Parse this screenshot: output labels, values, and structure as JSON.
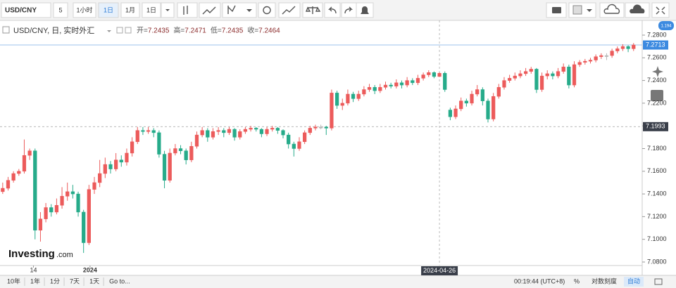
{
  "toolbar": {
    "symbol": "USD/CNY",
    "buttons": [
      "5",
      "1小时",
      "1日",
      "1月",
      "1日"
    ],
    "active": 2
  },
  "legend": {
    "title": "USD/CNY, 日, 实时外汇",
    "ohlc": [
      {
        "label": "开=",
        "value": 7.2435
      },
      {
        "label": "高=",
        "value": 7.2471
      },
      {
        "label": "低=",
        "value": 7.2435
      },
      {
        "label": "收=",
        "value": 7.2464
      }
    ]
  },
  "badge": "1.194",
  "logo": {
    "main": "Investing",
    "suffix": ".com"
  },
  "bottom_bar": {
    "ranges": [
      "10年",
      "1年",
      "1分",
      "7天",
      "1天"
    ],
    "goto": "Go to...",
    "clock": "00:19:44 (UTC+8)",
    "percent": "%",
    "log": "对数刻度",
    "auto": "自动"
  },
  "chart_data": {
    "type": "candlestick",
    "up_color": "#ec5b5b",
    "down_color": "#26ab8a",
    "flat_color": "#b8b8b8",
    "ylim": [
      7.0769,
      7.293
    ],
    "xlim": [
      -0.5,
      118.6
    ],
    "yticks": [
      {
        "value": 7.28,
        "label": "7.2800"
      },
      {
        "value": 7.26,
        "label": "7.2600"
      },
      {
        "value": 7.24,
        "label": "7.2400"
      },
      {
        "value": 7.22,
        "label": "7.2200"
      },
      {
        "value": 7.2,
        "label": "7.2000"
      },
      {
        "value": 7.18,
        "label": "7.1800"
      },
      {
        "value": 7.16,
        "label": "7.1600"
      },
      {
        "value": 7.14,
        "label": "7.1400"
      },
      {
        "value": 7.12,
        "label": "7.1200"
      },
      {
        "value": 7.1,
        "label": "7.1000"
      },
      {
        "value": 7.08,
        "label": "7.0800"
      }
    ],
    "xticks": [
      {
        "value": 5.7,
        "label": "14"
      },
      {
        "value": 16.2,
        "label": "2024"
      }
    ],
    "last_price": 7.2713,
    "crosshair": {
      "index": 81,
      "price": 7.1993,
      "label": "2024-04-26"
    },
    "candles": [
      [
        7.142,
        7.15,
        7.14,
        7.145
      ],
      [
        7.145,
        7.155,
        7.143,
        7.152
      ],
      [
        7.152,
        7.16,
        7.15,
        7.158
      ],
      [
        7.158,
        7.162,
        7.156,
        7.16
      ],
      [
        7.16,
        7.188,
        7.158,
        7.174
      ],
      [
        7.174,
        7.18,
        7.17,
        7.178
      ],
      [
        7.178,
        7.18,
        7.1,
        7.108
      ],
      [
        7.108,
        7.124,
        7.098,
        7.118
      ],
      [
        7.118,
        7.132,
        7.115,
        7.128
      ],
      [
        7.128,
        7.131,
        7.12,
        7.124
      ],
      [
        7.124,
        7.136,
        7.122,
        7.13
      ],
      [
        7.13,
        7.146,
        7.127,
        7.138
      ],
      [
        7.138,
        7.15,
        7.134,
        7.142
      ],
      [
        7.142,
        7.148,
        7.136,
        7.14
      ],
      [
        7.14,
        7.142,
        7.12,
        7.124
      ],
      [
        7.124,
        7.126,
        7.088,
        7.097
      ],
      [
        7.097,
        7.148,
        7.095,
        7.144
      ],
      [
        7.144,
        7.155,
        7.14,
        7.15
      ],
      [
        7.15,
        7.17,
        7.146,
        7.158
      ],
      [
        7.158,
        7.172,
        7.154,
        7.166
      ],
      [
        7.166,
        7.169,
        7.158,
        7.162
      ],
      [
        7.162,
        7.176,
        7.16,
        7.17
      ],
      [
        7.17,
        7.174,
        7.164,
        7.168
      ],
      [
        7.168,
        7.18,
        7.165,
        7.176
      ],
      [
        7.176,
        7.19,
        7.173,
        7.186
      ],
      [
        7.186,
        7.199,
        7.184,
        7.196
      ],
      [
        7.196,
        7.199,
        7.192,
        7.195
      ],
      [
        7.195,
        7.199,
        7.193,
        7.196
      ],
      [
        7.196,
        7.198,
        7.19,
        7.194
      ],
      [
        7.194,
        7.196,
        7.172,
        7.175
      ],
      [
        7.175,
        7.178,
        7.145,
        7.152
      ],
      [
        7.152,
        7.18,
        7.15,
        7.176
      ],
      [
        7.176,
        7.184,
        7.174,
        7.18
      ],
      [
        7.18,
        7.183,
        7.175,
        7.178
      ],
      [
        7.178,
        7.18,
        7.166,
        7.17
      ],
      [
        7.17,
        7.186,
        7.168,
        7.182
      ],
      [
        7.182,
        7.195,
        7.18,
        7.192
      ],
      [
        7.192,
        7.199,
        7.19,
        7.196
      ],
      [
        7.196,
        7.198,
        7.186,
        7.19
      ],
      [
        7.19,
        7.198,
        7.188,
        7.195
      ],
      [
        7.195,
        7.199,
        7.192,
        7.196
      ],
      [
        7.196,
        7.198,
        7.19,
        7.194
      ],
      [
        7.194,
        7.199,
        7.192,
        7.197
      ],
      [
        7.197,
        7.198,
        7.187,
        7.19
      ],
      [
        7.19,
        7.197,
        7.188,
        7.195
      ],
      [
        7.195,
        7.199,
        7.193,
        7.197
      ],
      [
        7.197,
        7.2,
        7.195,
        7.198
      ],
      [
        7.198,
        7.199,
        7.195,
        7.197
      ],
      [
        7.197,
        7.198,
        7.19,
        7.193
      ],
      [
        7.193,
        7.199,
        7.191,
        7.197
      ],
      [
        7.197,
        7.2,
        7.195,
        7.198
      ],
      [
        7.198,
        7.199,
        7.193,
        7.196
      ],
      [
        7.196,
        7.197,
        7.189,
        7.192
      ],
      [
        7.192,
        7.194,
        7.18,
        7.184
      ],
      [
        7.184,
        7.186,
        7.173,
        7.18
      ],
      [
        7.18,
        7.19,
        7.178,
        7.186
      ],
      [
        7.186,
        7.196,
        7.184,
        7.194
      ],
      [
        7.194,
        7.2,
        7.192,
        7.198
      ],
      [
        7.198,
        7.201,
        7.196,
        7.199
      ],
      [
        7.199,
        7.201,
        7.197,
        7.199
      ],
      [
        7.199,
        7.2,
        7.192,
        7.198
      ],
      [
        7.198,
        7.232,
        7.196,
        7.229
      ],
      [
        7.229,
        7.231,
        7.215,
        7.218
      ],
      [
        7.218,
        7.224,
        7.214,
        7.22
      ],
      [
        7.22,
        7.232,
        7.218,
        7.228
      ],
      [
        7.228,
        7.23,
        7.221,
        7.224
      ],
      [
        7.224,
        7.231,
        7.222,
        7.228
      ],
      [
        7.228,
        7.235,
        7.226,
        7.232
      ],
      [
        7.232,
        7.237,
        7.23,
        7.234
      ],
      [
        7.234,
        7.236,
        7.228,
        7.231
      ],
      [
        7.231,
        7.237,
        7.229,
        7.234
      ],
      [
        7.234,
        7.239,
        7.232,
        7.236
      ],
      [
        7.236,
        7.238,
        7.233,
        7.235
      ],
      [
        7.235,
        7.241,
        7.233,
        7.238
      ],
      [
        7.238,
        7.24,
        7.233,
        7.236
      ],
      [
        7.236,
        7.243,
        7.234,
        7.24
      ],
      [
        7.24,
        7.242,
        7.236,
        7.238
      ],
      [
        7.238,
        7.245,
        7.236,
        7.242
      ],
      [
        7.242,
        7.247,
        7.24,
        7.245
      ],
      [
        7.245,
        7.249,
        7.243,
        7.247
      ],
      [
        7.247,
        7.248,
        7.242,
        7.2435
      ],
      [
        7.2435,
        7.2471,
        7.2435,
        7.2464
      ],
      [
        7.2464,
        7.248,
        7.23,
        7.232
      ],
      [
        7.214,
        7.216,
        7.205,
        7.208
      ],
      [
        7.208,
        7.218,
        7.206,
        7.215
      ],
      [
        7.215,
        7.225,
        7.213,
        7.222
      ],
      [
        7.222,
        7.224,
        7.217,
        7.22
      ],
      [
        7.22,
        7.231,
        7.218,
        7.228
      ],
      [
        7.228,
        7.236,
        7.226,
        7.232
      ],
      [
        7.232,
        7.234,
        7.218,
        7.222
      ],
      [
        7.222,
        7.224,
        7.203,
        7.206
      ],
      [
        7.206,
        7.229,
        7.204,
        7.226
      ],
      [
        7.226,
        7.237,
        7.224,
        7.234
      ],
      [
        7.234,
        7.243,
        7.232,
        7.24
      ],
      [
        7.24,
        7.245,
        7.238,
        7.242
      ],
      [
        7.242,
        7.247,
        7.24,
        7.244
      ],
      [
        7.244,
        7.249,
        7.242,
        7.246
      ],
      [
        7.246,
        7.251,
        7.244,
        7.248
      ],
      [
        7.248,
        7.252,
        7.246,
        7.25
      ],
      [
        7.25,
        7.251,
        7.229,
        7.232
      ],
      [
        7.232,
        7.247,
        7.23,
        7.244
      ],
      [
        7.244,
        7.249,
        7.241,
        7.246
      ],
      [
        7.246,
        7.248,
        7.241,
        7.244
      ],
      [
        7.244,
        7.251,
        7.242,
        7.248
      ],
      [
        7.248,
        7.255,
        7.246,
        7.252
      ],
      [
        7.252,
        7.254,
        7.233,
        7.236
      ],
      [
        7.236,
        7.257,
        7.234,
        7.254
      ],
      [
        7.254,
        7.258,
        7.252,
        7.256
      ],
      [
        7.256,
        7.259,
        7.254,
        7.257
      ],
      [
        7.257,
        7.26,
        7.255,
        7.258
      ],
      [
        7.258,
        7.263,
        7.256,
        7.261
      ],
      [
        7.261,
        7.264,
        7.259,
        7.262
      ],
      [
        7.262,
        7.264,
        7.258,
        7.262
      ],
      [
        7.262,
        7.268,
        7.26,
        7.266
      ],
      [
        7.266,
        7.27,
        7.264,
        7.268
      ],
      [
        7.268,
        7.272,
        7.266,
        7.27
      ],
      [
        7.27,
        7.271,
        7.265,
        7.268
      ],
      [
        7.268,
        7.273,
        7.266,
        7.2713
      ]
    ]
  }
}
